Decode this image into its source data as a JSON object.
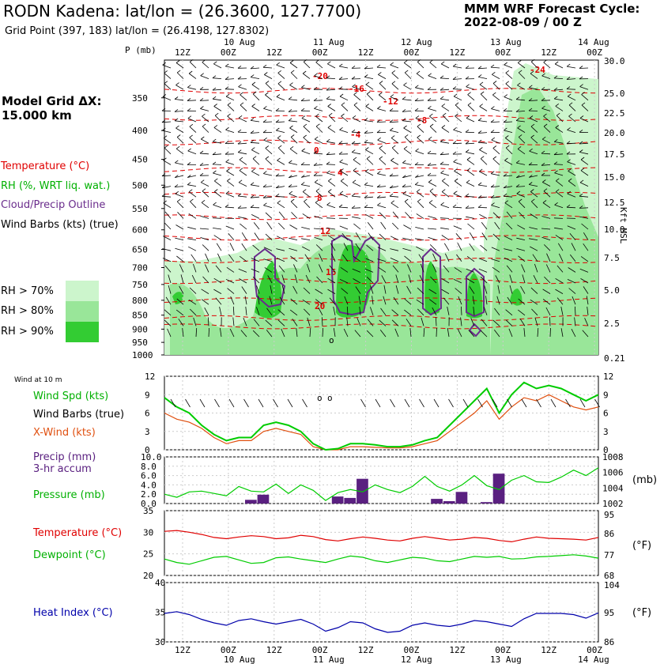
{
  "header": {
    "title": "RODN Kadena:  lat/lon = (26.3600, 127.7700)",
    "subtitle": "Grid Point (397, 183) lat/lon = (26.4198, 127.8302)",
    "cycle_line1": "MMM WRF Forecast Cycle:",
    "cycle_line2": "2022-08-09 / 00  Z"
  },
  "legend": {
    "model_grid_line1": "Model Grid ΔX:",
    "model_grid_line2": " 15.000 km",
    "temperature": "Temperature (°C)",
    "rh": "RH (%, WRT liq. wat.)",
    "cloud": "Cloud/Precip Outline",
    "barbs": "Wind Barbs (kts) (true)",
    "rh70": "RH > 70%",
    "rh80": "RH > 80%",
    "rh90": "RH > 90%",
    "wind10": "Wind at 10 m",
    "wind_spd": "Wind Spd (kts)",
    "wind_barbs": "Wind Barbs (true)",
    "xwind": "X-Wind (kts)",
    "precip_line1": "Precip (mm)",
    "precip_line2": "3-hr accum",
    "pressure": "Pressure (mb)",
    "temp2": "Temperature (°C)",
    "dewpoint": "Dewpoint (°C)",
    "heat_index": "Heat Index (°C)",
    "p_axis_label": "P (mb)",
    "kft_label": "Kft MSL",
    "mb_unit": "(mb)",
    "f_unit1": "(°F)",
    "f_unit2": "(°F)"
  },
  "colors": {
    "temperature": "#e00000",
    "rh70": "#ccf5cc",
    "rh80": "#99e699",
    "rh90": "#33cc33",
    "cloud": "#6a2c8c",
    "wind_spd": "#00cc00",
    "xwind": "#e05010",
    "precip": "#5a2080",
    "pressure": "#00cc00",
    "dewpoint": "#00cc00",
    "heat_index": "#0000aa"
  },
  "chart_data": [
    {
      "type": "area",
      "name_ref": "cross-section",
      "x": [
        "09/12Z",
        "10/00Z",
        "10/12Z",
        "11/00Z",
        "11/12Z",
        "12/00Z",
        "12/12Z",
        "13/00Z",
        "13/12Z",
        "14/00Z"
      ],
      "top_ticks": [
        "12Z",
        "00Z",
        "12Z",
        "00Z",
        "12Z",
        "00Z",
        "12Z",
        "00Z",
        "12Z",
        "00Z"
      ],
      "top_days": [
        "10 Aug",
        "11 Aug",
        "12 Aug",
        "13 Aug",
        "14 Aug"
      ],
      "pressure_levels": [
        350,
        400,
        450,
        500,
        550,
        600,
        650,
        700,
        750,
        800,
        850,
        900,
        950,
        1000
      ],
      "kft_ticks": [
        "30.0",
        "25.0",
        "22.5",
        "20.0",
        "17.5",
        "15.0",
        "12.5",
        "10.0",
        "7.5",
        "5.0",
        "2.5",
        "0.21"
      ],
      "temperature_labels": [
        "-24",
        "-20",
        "-16",
        "-12",
        "-8",
        "-4",
        "0",
        "4",
        "8",
        "12",
        "16",
        "20"
      ]
    },
    {
      "type": "line",
      "name_ref": "wind",
      "yticks": [
        "12",
        "9",
        "6",
        "3",
        "0"
      ],
      "ylim": [
        0,
        12
      ],
      "series": [
        {
          "name": "Wind Spd (kts)",
          "values": [
            8.5,
            7,
            6,
            4,
            2.5,
            1.5,
            2,
            2,
            4,
            4.5,
            4,
            3,
            1,
            0,
            0.2,
            1,
            1,
            0.8,
            0.5,
            0.5,
            0.8,
            1.5,
            2,
            4,
            6,
            8,
            10,
            6,
            9,
            11,
            10,
            10.5,
            10,
            9,
            8,
            9
          ]
        },
        {
          "name": "X-Wind (kts)",
          "values": [
            6,
            5,
            4.5,
            3.5,
            2,
            1,
            1.5,
            1.5,
            3,
            3.5,
            3,
            2.5,
            0.5,
            0,
            0,
            0.5,
            0.5,
            0.4,
            0.3,
            0.3,
            0.5,
            1,
            1.5,
            3,
            4.5,
            6,
            8,
            5,
            7,
            8.5,
            8,
            9,
            8,
            7,
            6.5,
            7
          ]
        }
      ]
    },
    {
      "type": "bar",
      "name_ref": "precip",
      "yticks": [
        "10.0",
        "8.0",
        "6.0",
        "4.0",
        "2.0",
        "0.0"
      ],
      "ylim": [
        0,
        10
      ],
      "right_ticks": [
        "1008",
        "1006",
        "1004",
        "1002"
      ],
      "pressure_ylim": [
        1002,
        1008
      ],
      "precip_values": [
        0,
        0,
        0,
        0,
        0,
        0,
        0,
        0.8,
        1.9,
        0,
        0,
        0,
        0,
        0,
        1.5,
        1.2,
        5.3,
        0,
        0,
        0,
        0,
        0,
        1.0,
        0.5,
        2.5,
        0,
        0.3,
        6.4,
        0,
        0,
        0,
        0,
        0,
        0,
        0,
        0
      ],
      "pressure_values": [
        1003.2,
        1002.8,
        1003.5,
        1003.6,
        1003.3,
        1003.0,
        1004.2,
        1003.6,
        1003.5,
        1004.5,
        1003.3,
        1004.4,
        1003.7,
        1002.4,
        1003.4,
        1003.8,
        1003.5,
        1004.4,
        1003.8,
        1003.4,
        1004.2,
        1005.5,
        1004.2,
        1003.6,
        1004.4,
        1005.6,
        1004.3,
        1003.8,
        1005.0,
        1005.6,
        1004.8,
        1004.7,
        1005.4,
        1006.3,
        1005.6,
        1006.6
      ]
    },
    {
      "type": "line",
      "name_ref": "temperature",
      "yticks": [
        "35",
        "30",
        "25",
        "20"
      ],
      "ylim": [
        20,
        35
      ],
      "right_ticks": [
        "95",
        "86",
        "77",
        "68"
      ],
      "series": [
        {
          "name": "Temperature (°C)",
          "values": [
            30.2,
            30.4,
            30.0,
            29.5,
            28.8,
            28.5,
            28.9,
            29.2,
            29.0,
            28.5,
            28.7,
            29.3,
            29.0,
            28.3,
            28.0,
            28.5,
            28.9,
            28.6,
            28.2,
            28.0,
            28.6,
            29.0,
            28.6,
            28.2,
            28.4,
            28.8,
            28.6,
            28.1,
            27.8,
            28.4,
            28.9,
            28.6,
            28.5,
            28.4,
            28.2,
            28.8
          ]
        },
        {
          "name": "Dewpoint (°C)",
          "values": [
            23.8,
            23.0,
            22.6,
            23.4,
            24.2,
            24.4,
            23.6,
            22.8,
            23.0,
            24.1,
            24.3,
            23.8,
            23.4,
            23.0,
            23.8,
            24.5,
            24.2,
            23.4,
            23.0,
            23.6,
            24.2,
            24.0,
            23.4,
            23.2,
            23.8,
            24.4,
            24.2,
            24.4,
            23.8,
            23.9,
            24.3,
            24.4,
            24.6,
            24.8,
            24.5,
            24.0
          ]
        }
      ]
    },
    {
      "type": "line",
      "name_ref": "heat-index",
      "yticks": [
        "40",
        "35",
        "30"
      ],
      "ylim": [
        30,
        40
      ],
      "right_ticks": [
        "104",
        "95",
        "86"
      ],
      "series": [
        {
          "name": "Heat Index (°C)",
          "values": [
            34.8,
            35.1,
            34.6,
            33.8,
            33.2,
            32.8,
            33.6,
            33.9,
            33.4,
            33.0,
            33.4,
            33.8,
            33.0,
            31.8,
            32.4,
            33.4,
            33.2,
            32.2,
            31.6,
            31.8,
            32.8,
            33.2,
            32.8,
            32.6,
            33.0,
            33.6,
            33.4,
            33.0,
            32.6,
            33.9,
            34.8,
            34.8,
            34.8,
            34.6,
            34.0,
            34.9
          ]
        }
      ]
    }
  ],
  "bottom_axis": {
    "ticks": [
      "12Z",
      "00Z",
      "12Z",
      "00Z",
      "12Z",
      "00Z",
      "12Z",
      "00Z",
      "12Z",
      "00Z"
    ],
    "days": [
      "10 Aug",
      "11 Aug",
      "12 Aug",
      "13 Aug",
      "14 Aug"
    ]
  },
  "wind_circles": [
    "o",
    "o"
  ]
}
